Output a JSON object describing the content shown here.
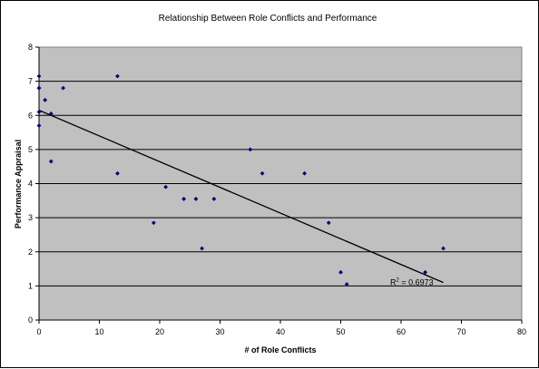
{
  "chart_data": {
    "type": "scatter",
    "title": "Relationship Between Role Conflicts and Performance",
    "xlabel": "# of Role Conflicts",
    "ylabel": "Performance Appraisal",
    "xlim": [
      0,
      80
    ],
    "ylim": [
      0,
      8
    ],
    "xticks": [
      "0",
      "10",
      "20",
      "30",
      "40",
      "50",
      "60",
      "70",
      "80"
    ],
    "yticks": [
      "0",
      "1",
      "2",
      "3",
      "4",
      "5",
      "6",
      "7",
      "8"
    ],
    "grid": "horizontal",
    "plot_background": "#c0c0c0",
    "point_color": "#00007f",
    "series": [
      {
        "points": [
          [
            0,
            7.15
          ],
          [
            0,
            6.8
          ],
          [
            0,
            6.8
          ],
          [
            0,
            6.1
          ],
          [
            0,
            5.7
          ],
          [
            1,
            6.45
          ],
          [
            2,
            6.05
          ],
          [
            2,
            4.65
          ],
          [
            4,
            6.8
          ],
          [
            13,
            7.15
          ],
          [
            13,
            4.3
          ],
          [
            19,
            2.85
          ],
          [
            21,
            3.9
          ],
          [
            24,
            3.55
          ],
          [
            26,
            3.55
          ],
          [
            27,
            2.1
          ],
          [
            29,
            3.55
          ],
          [
            35,
            5.0
          ],
          [
            37,
            4.3
          ],
          [
            44,
            4.3
          ],
          [
            48,
            2.85
          ],
          [
            50,
            1.4
          ],
          [
            51,
            1.05
          ],
          [
            64,
            1.4
          ],
          [
            67,
            2.1
          ]
        ]
      }
    ],
    "trendline": {
      "x": [
        0,
        67
      ],
      "y": [
        6.15,
        1.1
      ]
    },
    "annotation": {
      "prefix": "R",
      "superscript": "2",
      "suffix": " = 0.6973",
      "x": 58.2,
      "y": 1.1
    }
  }
}
